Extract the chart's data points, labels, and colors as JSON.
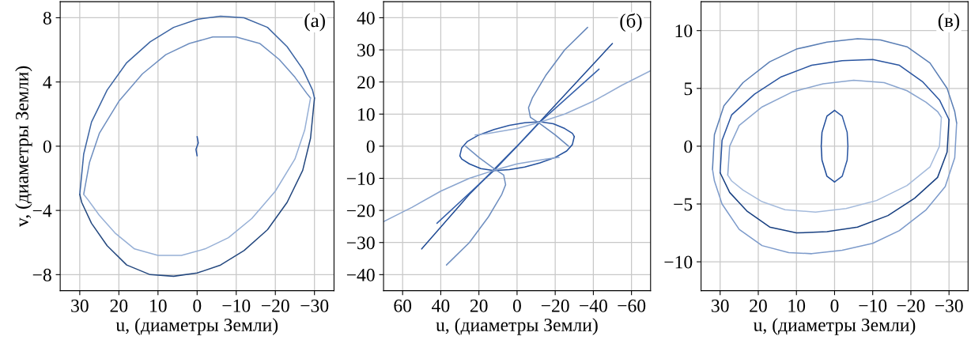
{
  "chart_data": [
    {
      "type": "line",
      "xlabel": "u, (диаметры Земли)",
      "ylabel": "v, (диаметры Земли)",
      "annotations": [
        "(a)"
      ],
      "xlim": [
        35,
        -35
      ],
      "xticks": [
        30,
        20,
        10,
        0,
        {
          "value": -10,
          "label": "−10"
        },
        {
          "value": -20,
          "label": "−20"
        },
        {
          "value": -30,
          "label": "−30"
        }
      ],
      "ylim": [
        -9,
        9
      ],
      "yticks": [
        {
          "value": -8,
          "label": "−8"
        },
        {
          "value": -4,
          "label": "−4"
        },
        0,
        4,
        8
      ],
      "grid": true,
      "series": [
        {
          "color": "#3d65a3",
          "x": [
            30,
            29,
            27,
            23,
            18,
            12,
            6,
            0,
            -6,
            -12,
            -18,
            -23,
            -27,
            -29.5,
            -30
          ],
          "values": [
            -3,
            -0.5,
            1.5,
            3.5,
            5.2,
            6.5,
            7.4,
            7.9,
            8.1,
            8,
            7.4,
            6.2,
            4.8,
            3.5,
            3
          ]
        },
        {
          "color": "#24487f",
          "x": [
            -30,
            -29,
            -27,
            -23,
            -18,
            -12,
            -6,
            0,
            6,
            12,
            18,
            23,
            27,
            29.5,
            30
          ],
          "values": [
            3,
            0.5,
            -1.5,
            -3.5,
            -5.2,
            -6.5,
            -7.4,
            -7.9,
            -8.1,
            -8,
            -7.4,
            -6.2,
            -4.8,
            -3.5,
            -3
          ]
        },
        {
          "color": "#6f8fc0",
          "x": [
            29,
            27.5,
            25,
            20,
            14,
            8,
            2,
            -4,
            -10,
            -16,
            -21,
            -25,
            -28,
            -29
          ],
          "values": [
            -3,
            -1,
            0.8,
            2.8,
            4.5,
            5.7,
            6.4,
            6.8,
            6.8,
            6.4,
            5.4,
            4.3,
            3.3,
            3
          ]
        },
        {
          "color": "#97b0d6",
          "x": [
            -29,
            -27.5,
            -25,
            -20,
            -14,
            -8,
            -2,
            4,
            10,
            16,
            21,
            25,
            28,
            29
          ],
          "values": [
            3,
            1,
            -0.8,
            -2.8,
            -4.5,
            -5.7,
            -6.4,
            -6.8,
            -6.8,
            -6.4,
            -5.4,
            -4.3,
            -3.3,
            -3
          ]
        },
        {
          "color": "#2a55a0",
          "x": [
            0,
            0.3,
            -0.3,
            0
          ],
          "values": [
            -0.6,
            -0.2,
            0.2,
            0.6
          ]
        }
      ]
    },
    {
      "type": "line",
      "xlabel": "u, (диаметры Земли)",
      "annotations": [
        "(б)"
      ],
      "xlim": [
        70,
        -70
      ],
      "xticks": [
        60,
        40,
        20,
        0,
        {
          "value": -20,
          "label": "−20"
        },
        {
          "value": -40,
          "label": "−40"
        },
        {
          "value": -60,
          "label": "−60"
        }
      ],
      "ylim": [
        -45,
        45
      ],
      "yticks": [
        {
          "value": -40,
          "label": "−40"
        },
        {
          "value": -30,
          "label": "−30"
        },
        {
          "value": -20,
          "label": "−20"
        },
        {
          "value": -10,
          "label": "−10"
        },
        0,
        10,
        20,
        30,
        40
      ],
      "grid": true,
      "series": [
        {
          "color": "#2a55a0",
          "x": [
            30,
            29,
            26,
            20,
            12,
            4,
            -4,
            -12,
            -19,
            -25,
            -29,
            -30
          ],
          "values": [
            -3,
            -0.5,
            1.5,
            3.5,
            5.2,
            6.5,
            7.3,
            7.6,
            7,
            5.5,
            4,
            3
          ]
        },
        {
          "color": "#22509c",
          "x": [
            -30,
            -29,
            -26,
            -20,
            -12,
            -4,
            4,
            12,
            19,
            25,
            29,
            30
          ],
          "values": [
            3,
            0.5,
            -1.5,
            -3.5,
            -5.2,
            -6.5,
            -7.3,
            -7.6,
            -7,
            -5.5,
            -4,
            -3
          ]
        },
        {
          "color": "#1f4a94",
          "x": [
            50,
            25,
            0,
            -25,
            -50
          ],
          "values": [
            -32,
            -15,
            0,
            16,
            32
          ]
        },
        {
          "color": "#3560aa",
          "x": [
            42,
            12,
            -12,
            -43
          ],
          "values": [
            -24,
            -7.5,
            7.5,
            24
          ]
        },
        {
          "color": "#6f8fc0",
          "x": [
            37,
            25,
            15,
            8,
            6,
            7,
            12,
            20,
            27
          ],
          "values": [
            -37,
            -30,
            -22,
            -15,
            -12,
            -9,
            -7,
            -3.5,
            0
          ]
        },
        {
          "color": "#6788bb",
          "x": [
            -37,
            -25,
            -15,
            -8,
            -6,
            -7,
            -12,
            -20,
            -27
          ],
          "values": [
            37,
            30,
            22,
            15,
            12,
            9,
            7,
            3.5,
            0
          ]
        },
        {
          "color": "#8aa5cf",
          "x": [
            70,
            55,
            40,
            25,
            12,
            0,
            -15,
            -22
          ],
          "values": [
            -23.5,
            -19,
            -14,
            -10,
            -7.5,
            -5.5,
            -4,
            -3.5
          ]
        },
        {
          "color": "#93acd3",
          "x": [
            -70,
            -55,
            -40,
            -25,
            -12,
            0,
            15,
            22
          ],
          "values": [
            23.5,
            19,
            14,
            10,
            7.5,
            5.5,
            4,
            3.5
          ]
        }
      ]
    },
    {
      "type": "line",
      "xlabel": "u, (диаметры Земли)",
      "annotations": [
        "(в)"
      ],
      "xlim": [
        35,
        -35
      ],
      "xticks": [
        30,
        20,
        10,
        0,
        {
          "value": -10,
          "label": "−10"
        },
        {
          "value": -20,
          "label": "−20"
        },
        {
          "value": -30,
          "label": "−30"
        }
      ],
      "ylim": [
        -12.5,
        12.5
      ],
      "yticks": [
        {
          "value": -10,
          "label": "−10"
        },
        {
          "value": -5,
          "label": "−5"
        },
        0,
        5,
        10
      ],
      "grid": true,
      "series": [
        {
          "color": "#5b7fb5",
          "x": [
            32,
            31.5,
            29,
            24,
            17,
            10,
            2,
            -6,
            -12,
            -19,
            -25,
            -29.5,
            -31.5,
            -32
          ],
          "values": [
            -2,
            1,
            3.5,
            5.5,
            7.3,
            8.4,
            9,
            9.3,
            9.2,
            8.6,
            7.2,
            5,
            3,
            2
          ]
        },
        {
          "color": "#7d9bcb",
          "x": [
            -32,
            -31.5,
            -29,
            -24,
            -17,
            -10,
            -2,
            6,
            12,
            19,
            25,
            29.5,
            31.5,
            32
          ],
          "values": [
            2,
            -1,
            -3.5,
            -5.5,
            -7.3,
            -8.4,
            -9,
            -9.3,
            -9.2,
            -8.6,
            -7.2,
            -5,
            -3,
            -2
          ]
        },
        {
          "color": "#2a55a0",
          "x": [
            30,
            29.5,
            27,
            21,
            14,
            6,
            -2,
            -10,
            -17,
            -23,
            -27.5,
            -30
          ],
          "values": [
            -2.3,
            0.5,
            2.7,
            4.5,
            6,
            7,
            7.4,
            7.5,
            7,
            5.6,
            4,
            2.3
          ]
        },
        {
          "color": "#173f80",
          "x": [
            -30,
            -29.5,
            -27,
            -21,
            -14,
            -6,
            2,
            10,
            17,
            23,
            27.5,
            30
          ],
          "values": [
            2.3,
            -0.5,
            -2.7,
            -4.5,
            -6,
            -7,
            -7.4,
            -7.5,
            -7,
            -5.6,
            -4,
            -2.3
          ]
        },
        {
          "color": "#8aa5cf",
          "x": [
            28,
            27.5,
            25,
            19,
            11,
            3,
            -5,
            -13,
            -19,
            -24,
            -27,
            -28
          ],
          "values": [
            -2.5,
            0,
            1.8,
            3.4,
            4.7,
            5.4,
            5.7,
            5.5,
            4.8,
            3.8,
            3,
            2.5
          ]
        },
        {
          "color": "#a5bbdc",
          "x": [
            -28,
            -27.5,
            -25,
            -19,
            -11,
            -3,
            5,
            13,
            19,
            24,
            27,
            28
          ],
          "values": [
            2.5,
            0,
            -1.8,
            -3.4,
            -4.7,
            -5.4,
            -5.7,
            -5.5,
            -4.8,
            -3.8,
            -3,
            -2.5
          ]
        },
        {
          "color": "#1d4a98",
          "x": [
            0,
            2,
            3.3,
            3.5,
            3.3,
            2,
            0
          ],
          "values": [
            3.1,
            2.6,
            1.2,
            0,
            -1.2,
            -2.6,
            -3.1
          ]
        },
        {
          "color": "#2d58a3",
          "x": [
            0,
            -2,
            -3.3,
            -3.5,
            -3.3,
            -2,
            0
          ],
          "values": [
            -3.1,
            -2.6,
            -1.2,
            0,
            1.2,
            2.6,
            3.1
          ]
        }
      ]
    }
  ]
}
